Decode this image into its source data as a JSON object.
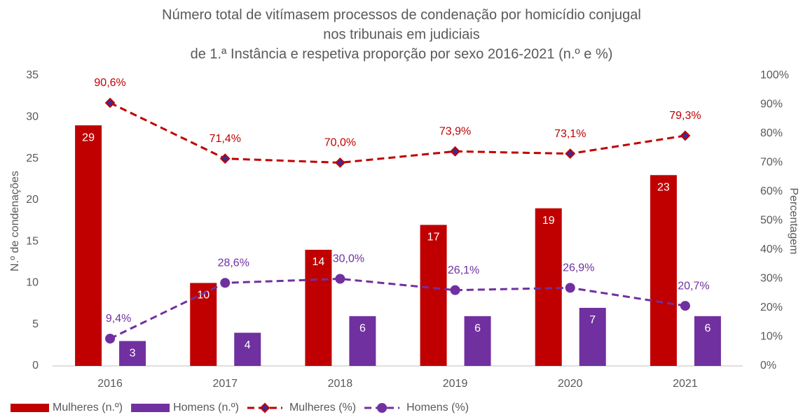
{
  "chart_data": {
    "type": "bar-line",
    "title": [
      "Número total de vitímasem processos de condenação por homicídio conjugal",
      "nos tribunais em judiciais",
      "de 1.ª Instância e respetiva proporção por sexo 2016-2021 (n.º e %)"
    ],
    "y_label": "N.º de condenações",
    "y2_label": "Percentagem",
    "categories": [
      "2016",
      "2017",
      "2018",
      "2019",
      "2020",
      "2021"
    ],
    "series": [
      {
        "name": "Mulheres (n.º)",
        "kind": "bar",
        "color": "#c00000",
        "values": [
          29,
          10,
          14,
          17,
          19,
          23
        ]
      },
      {
        "name": "Homens (n.º)",
        "kind": "bar",
        "color": "#7030a0",
        "values": [
          3,
          4,
          6,
          6,
          7,
          6
        ]
      },
      {
        "name": "Mulheres (%)",
        "kind": "line",
        "axis": "y2",
        "marker": "diamond",
        "color": "#c00000",
        "values": [
          90.6,
          71.4,
          70.0,
          73.9,
          73.1,
          79.3
        ],
        "value_labels": [
          "90,6%",
          "71,4%",
          "70,0%",
          "73,9%",
          "73,1%",
          "79,3%"
        ]
      },
      {
        "name": "Homens (%)",
        "kind": "line",
        "axis": "y2",
        "marker": "circle",
        "color": "#7030a0",
        "values": [
          9.4,
          28.6,
          30.0,
          26.1,
          26.9,
          20.7
        ],
        "value_labels": [
          "9,4%",
          "28,6%",
          "30,0%",
          "26,1%",
          "26,9%",
          "20,7%"
        ]
      }
    ],
    "ylim": [
      0,
      35
    ],
    "yticks": [
      0,
      5,
      10,
      15,
      20,
      25,
      30,
      35
    ],
    "y2lim": [
      0,
      100
    ],
    "y2ticks": [
      {
        "value": 0,
        "label": "0%"
      },
      {
        "value": 10,
        "label": "10%"
      },
      {
        "value": 20,
        "label": "20%"
      },
      {
        "value": 30,
        "label": "30%"
      },
      {
        "value": 40,
        "label": "40%"
      },
      {
        "value": 50,
        "label": "50%"
      },
      {
        "value": 60,
        "label": "60%"
      },
      {
        "value": 70,
        "label": "70%"
      },
      {
        "value": 80,
        "label": "80%"
      },
      {
        "value": 90,
        "label": "90%"
      },
      {
        "value": 100,
        "label": "100%"
      }
    ],
    "grid": false,
    "legend": "bottom"
  }
}
